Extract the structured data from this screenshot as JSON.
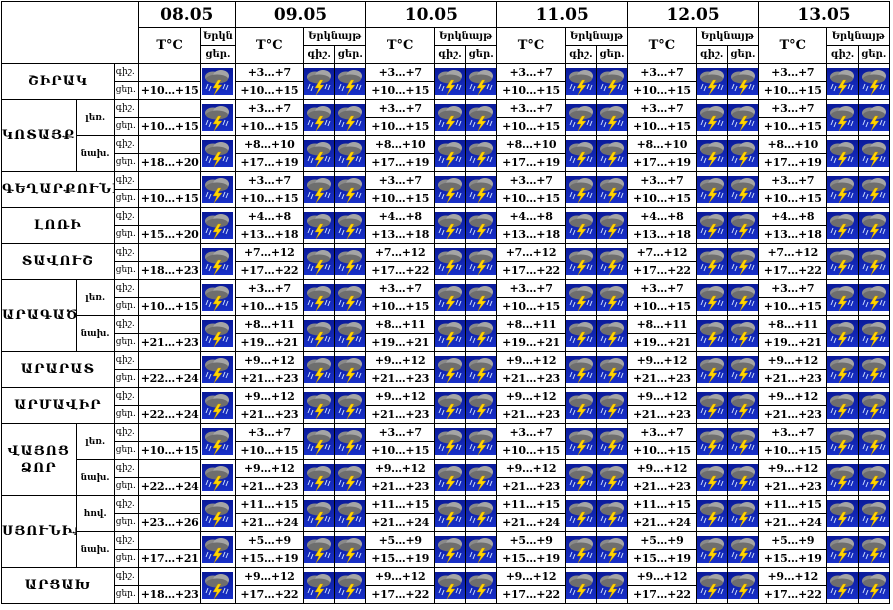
{
  "header": {
    "dates": [
      "08.05",
      "09.05",
      "10.05",
      "11.05",
      "12.05",
      "13.05"
    ],
    "temp_label": "T°C",
    "sky_label": "Երկնայթ",
    "sky_label_first": "Երկն",
    "night_label": "գիշ.",
    "day_label": "ցեր.",
    "day_label_first": "ցեր."
  },
  "labels": {
    "night": "գիշ.",
    "day": "ցեր."
  },
  "icon": "thunderstorm-rain-icon",
  "colors": {
    "icon_sky": "#1830c8",
    "icon_cloud": "#8a8a8a",
    "icon_bolt": "#ffd400",
    "border": "#000000"
  },
  "rows": [
    {
      "region": "ՇԻՐԱԿ",
      "part": "",
      "first": {
        "night": "",
        "day": "+10...+15"
      },
      "rest": {
        "night": "+3...+7",
        "day": "+10...+15"
      }
    },
    {
      "region": "ԿՈՏԱՅՔ",
      "part": "լեռ.",
      "first": {
        "night": "",
        "day": "+10...+15"
      },
      "rest": {
        "night": "+3...+7",
        "day": "+10...+15"
      }
    },
    {
      "region": "",
      "part": "նախ.",
      "first": {
        "night": "",
        "day": "+18...+20"
      },
      "rest": {
        "night": "+8...+10",
        "day": "+17...+19"
      }
    },
    {
      "region": "ԳԵՂԱՐՔՈՒՆԻՔ",
      "part": "",
      "first": {
        "night": "",
        "day": "+10...+15"
      },
      "rest": {
        "night": "+3...+7",
        "day": "+10...+15"
      }
    },
    {
      "region": "ԼՈՌԻ",
      "part": "",
      "first": {
        "night": "",
        "day": "+15...+20"
      },
      "rest": {
        "night": "+4...+8",
        "day": "+13...+18"
      }
    },
    {
      "region": "ՏԱՎՈՒՇ",
      "part": "",
      "first": {
        "night": "",
        "day": "+18...+23"
      },
      "rest": {
        "night": "+7...+12",
        "day": "+17...+22"
      }
    },
    {
      "region": "ԱՐԱԳԱԾՈՏՆ",
      "part": "լեռ.",
      "first": {
        "night": "",
        "day": "+10...+15"
      },
      "rest": {
        "night": "+3...+7",
        "day": "+10...+15"
      }
    },
    {
      "region": "",
      "part": "նախ.",
      "first": {
        "night": "",
        "day": "+21...+23"
      },
      "rest": {
        "night": "+8...+11",
        "day": "+19...+21"
      }
    },
    {
      "region": "ԱՐԱՐԱՏ",
      "part": "",
      "first": {
        "night": "",
        "day": "+22...+24"
      },
      "rest": {
        "night": "+9...+12",
        "day": "+21...+23"
      }
    },
    {
      "region": "ԱՐՄԱՎԻՐ",
      "part": "",
      "first": {
        "night": "",
        "day": "+22...+24"
      },
      "rest": {
        "night": "+9...+12",
        "day": "+21...+23"
      }
    },
    {
      "region": "ՎԱՅՈՑ ՁՈՐ",
      "part": "լեռ.",
      "first": {
        "night": "",
        "day": "+10...+15"
      },
      "rest": {
        "night": "+3...+7",
        "day": "+10...+15"
      }
    },
    {
      "region": "",
      "part": "նախ.",
      "first": {
        "night": "",
        "day": "+22...+24"
      },
      "rest": {
        "night": "+9...+12",
        "day": "+21...+23"
      }
    },
    {
      "region": "ՍՅՈՒՆԻՔ",
      "part": "հով.",
      "first": {
        "night": "",
        "day": "+23...+26"
      },
      "rest": {
        "night": "+11...+15",
        "day": "+21...+24"
      }
    },
    {
      "region": "",
      "part": "նախ.",
      "first": {
        "night": "",
        "day": "+17...+21"
      },
      "rest": {
        "night": "+5...+9",
        "day": "+15...+19"
      }
    },
    {
      "region": "ԱՐՑԱԽ",
      "part": "",
      "first": {
        "night": "",
        "day": "+18...+23"
      },
      "rest": {
        "night": "+9...+12",
        "day": "+17...+22"
      }
    }
  ]
}
